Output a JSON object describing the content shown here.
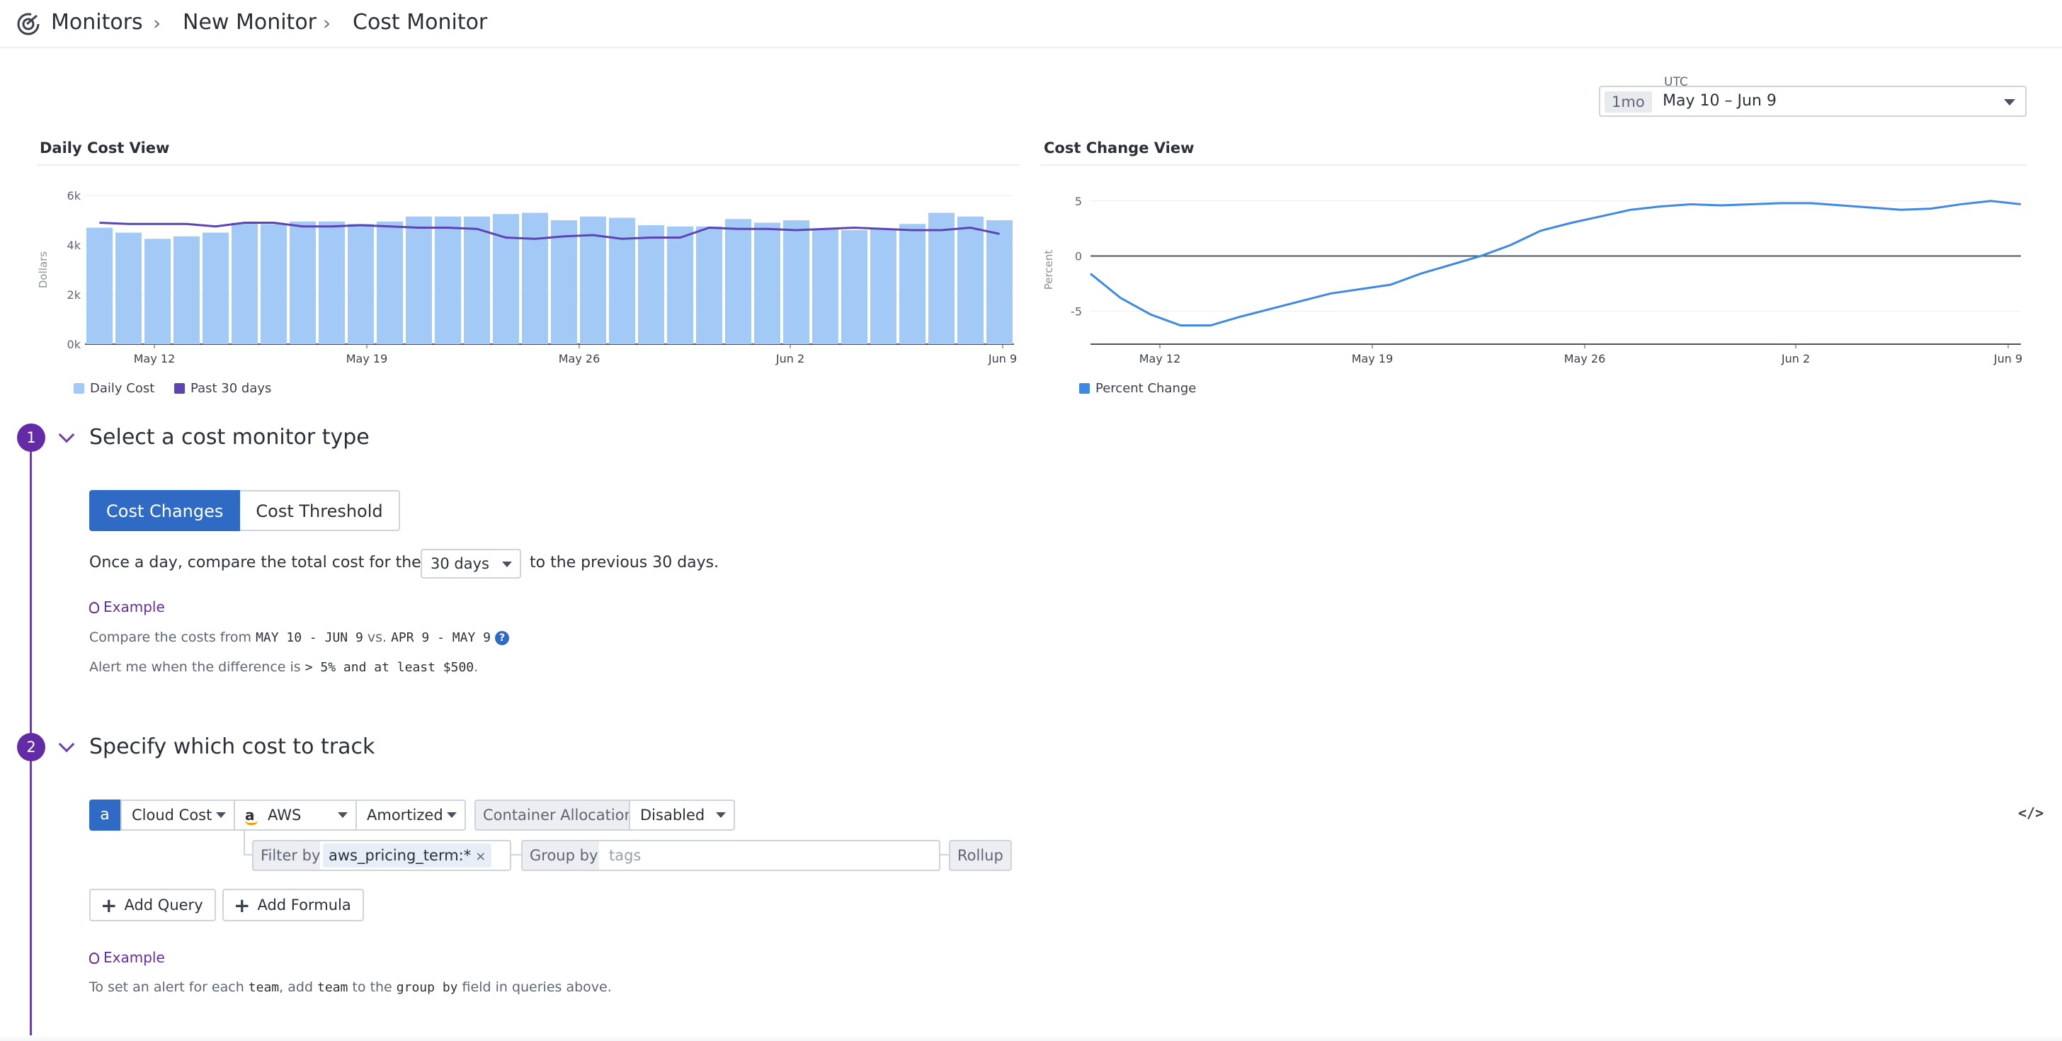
{
  "breadcrumb": {
    "root": "Monitors",
    "middle": "New Monitor",
    "current": "Cost Monitor"
  },
  "time_range": {
    "timezone": "UTC",
    "preset": "1mo",
    "label": "May 10 – Jun 9"
  },
  "colors": {
    "bar": "#a3c9f7",
    "line_past": "#5c45b3",
    "line_percent": "#3f8ae0",
    "primary": "#2f6bc4",
    "step": "#632ca6"
  },
  "chart_data": [
    {
      "type": "bar",
      "title": "Daily Cost View",
      "ylabel": "Dollars",
      "ylim": [
        0,
        6000
      ],
      "y_ticks": [
        "0k",
        "2k",
        "4k",
        "6k"
      ],
      "x_ticks": [
        "May 12",
        "May 19",
        "May 26",
        "Jun 2",
        "Jun 9"
      ],
      "categories": [
        "May 10",
        "May 11",
        "May 12",
        "May 13",
        "May 14",
        "May 15",
        "May 16",
        "May 17",
        "May 18",
        "May 19",
        "May 20",
        "May 21",
        "May 22",
        "May 23",
        "May 24",
        "May 25",
        "May 26",
        "May 27",
        "May 28",
        "May 29",
        "May 30",
        "May 31",
        "Jun 1",
        "Jun 2",
        "Jun 3",
        "Jun 4",
        "Jun 5",
        "Jun 6",
        "Jun 7",
        "Jun 8",
        "Jun 9",
        "Jun 10"
      ],
      "series": [
        {
          "name": "Daily Cost",
          "kind": "bar",
          "values": [
            4700,
            4500,
            4250,
            4350,
            4500,
            4900,
            4850,
            4950,
            4950,
            4850,
            4950,
            5150,
            5150,
            5150,
            5250,
            5300,
            5000,
            5150,
            5100,
            4800,
            4750,
            4750,
            5050,
            4900,
            5000,
            4650,
            4600,
            4650,
            4850,
            5300,
            5150,
            5000
          ]
        },
        {
          "name": "Past 30 days",
          "kind": "line",
          "values": [
            4900,
            4850,
            4850,
            4850,
            4750,
            4900,
            4900,
            4750,
            4750,
            4800,
            4750,
            4700,
            4700,
            4650,
            4300,
            4250,
            4350,
            4400,
            4250,
            4300,
            4300,
            4700,
            4650,
            4650,
            4600,
            4650,
            4700,
            4650,
            4600,
            4600,
            4700,
            4450
          ]
        }
      ]
    },
    {
      "type": "line",
      "title": "Cost Change View",
      "ylabel": "Percent",
      "ylim": [
        -8,
        5.5
      ],
      "y_ticks": [
        "5",
        "0",
        "-5"
      ],
      "x_ticks": [
        "May 12",
        "May 19",
        "May 26",
        "Jun 2",
        "Jun 9"
      ],
      "series": [
        {
          "name": "Percent Change",
          "values": [
            -1.6,
            -3.8,
            -5.3,
            -6.3,
            -6.3,
            -5.5,
            -4.8,
            -4.1,
            -3.4,
            -3.0,
            -2.6,
            -1.6,
            -0.8,
            0.0,
            1.0,
            2.3,
            3.0,
            3.6,
            4.2,
            4.5,
            4.7,
            4.6,
            4.7,
            4.8,
            4.8,
            4.6,
            4.4,
            4.2,
            4.3,
            4.7,
            5.0,
            4.7
          ]
        }
      ]
    }
  ],
  "step1": {
    "number": "1",
    "title": "Select a cost monitor type",
    "tabs": [
      "Cost Changes",
      "Cost Threshold"
    ],
    "sentence_prefix": "Once a day, compare the total cost for the past",
    "period_value": "30 days",
    "sentence_suffix": "to the previous 30 days.",
    "example_label": "Example",
    "compare_prefix": "Compare the costs from",
    "compare_range_a": "MAY 10 - JUN 9",
    "compare_vs": "vs.",
    "compare_range_b": "APR 9 - MAY 9",
    "help_glyph": "?",
    "alert_prefix": "Alert me when the difference is",
    "alert_condition": "> 5% and at least $500",
    "alert_suffix": "."
  },
  "step2": {
    "number": "2",
    "title": "Specify which cost to track",
    "query_letter": "a",
    "source": "Cloud Cost",
    "provider": "AWS",
    "cost_type": "Amortized",
    "container_label": "Container Allocation",
    "container_value": "Disabled",
    "filter_label": "Filter by",
    "filter_tag": "aws_pricing_term:*",
    "group_label": "Group by",
    "group_placeholder": "tags",
    "rollup_label": "Rollup",
    "add_query": "Add Query",
    "add_formula": "Add Formula",
    "example_label": "Example",
    "note_1": "To set an alert for each",
    "note_team_a": "team",
    "note_2": ", add",
    "note_team_b": "team",
    "note_3": "to the",
    "note_group_by": "group by",
    "note_4": "field in queries above.",
    "code_toggle": "</>"
  }
}
